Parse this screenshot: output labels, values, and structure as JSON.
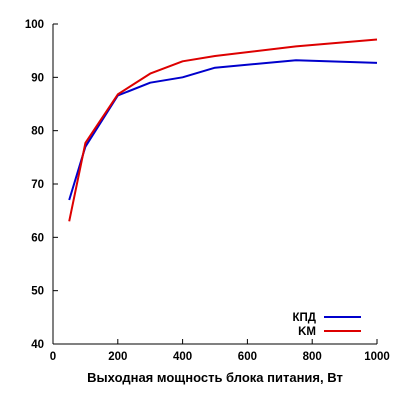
{
  "chart_data": {
    "type": "line",
    "xlabel": "Выходная мощность блока питания, Вт",
    "ylabel": "",
    "xlim": [
      0,
      1000
    ],
    "ylim": [
      40,
      100
    ],
    "x_ticks": [
      0,
      200,
      400,
      600,
      800,
      1000
    ],
    "y_ticks": [
      40,
      50,
      60,
      70,
      80,
      90,
      100
    ],
    "grid": false,
    "legend_position": "bottom-right",
    "series": [
      {
        "name": "КПД",
        "color": "#0000cc",
        "points": [
          [
            50,
            67
          ],
          [
            100,
            77
          ],
          [
            200,
            86.6
          ],
          [
            300,
            89
          ],
          [
            400,
            90
          ],
          [
            500,
            91.8
          ],
          [
            750,
            93.2
          ],
          [
            1000,
            92.7
          ]
        ]
      },
      {
        "name": "KM",
        "color": "#dd0000",
        "points": [
          [
            50,
            63
          ],
          [
            100,
            77.7
          ],
          [
            200,
            86.8
          ],
          [
            300,
            90.7
          ],
          [
            400,
            93
          ],
          [
            500,
            94
          ],
          [
            750,
            95.8
          ],
          [
            1000,
            97.1
          ]
        ]
      }
    ]
  }
}
